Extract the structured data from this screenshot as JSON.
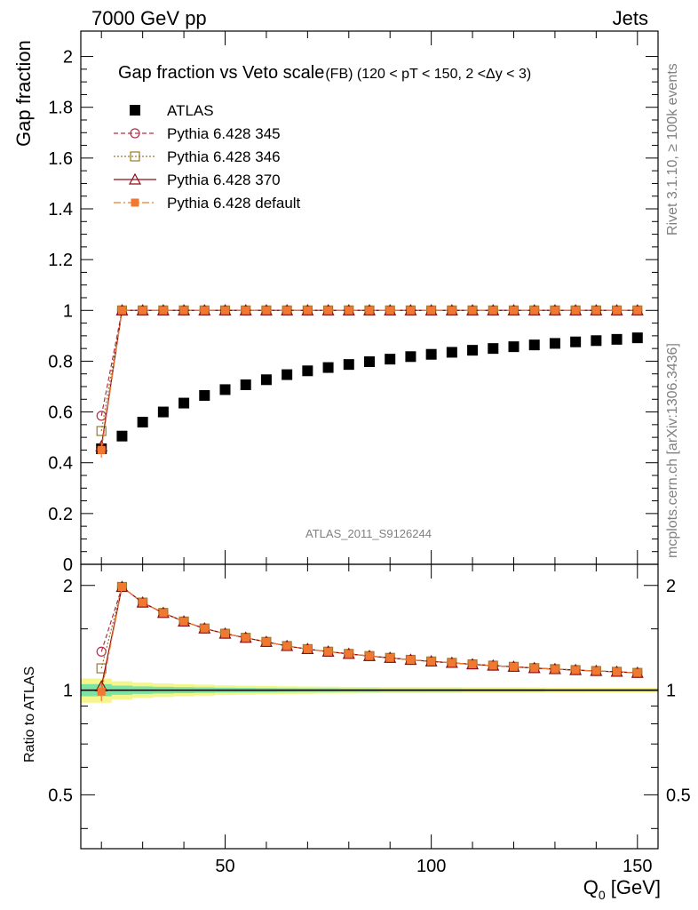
{
  "header": {
    "energy_label": "7000 GeV pp",
    "category_label": "Jets"
  },
  "side_labels": {
    "rivet": "Rivet 3.1.10, ≥ 100k events",
    "mcplots": "mcplots.cern.ch [arXiv:1306.3436]"
  },
  "watermark": "ATLAS_2011_S9126244",
  "colors": {
    "atlas": "#000000",
    "p345": "#b0304a",
    "p346": "#9a7a2a",
    "p370": "#8b0d17",
    "pdefault": "#f07830",
    "band_inner": "#7ee2a0",
    "band_outer": "#f4f58a"
  },
  "chart_data": [
    {
      "type": "scatter",
      "panel": "main",
      "title": "Gap fraction vs Veto scale",
      "subtitle": "(FB) (120 < pT < 150, 2 <Δy < 3)",
      "ylabel": "Gap fraction",
      "xlim": [
        15,
        155
      ],
      "ylim": [
        0,
        2.1
      ],
      "yticks": [
        0,
        0.2,
        0.4,
        0.6,
        0.8,
        1,
        1.2,
        1.4,
        1.6,
        1.8,
        2
      ],
      "ytick_labels": [
        "0",
        "0.2",
        "0.4",
        "0.6",
        "0.8",
        "1",
        "1.2",
        "1.4",
        "1.6",
        "1.8",
        "2"
      ],
      "legend_position": "top-left",
      "series": [
        {
          "name": "ATLAS",
          "key": "atlas",
          "marker": "filled-square",
          "line": "none",
          "x": [
            20,
            25,
            30,
            35,
            40,
            45,
            50,
            55,
            60,
            65,
            70,
            75,
            80,
            85,
            90,
            95,
            100,
            105,
            110,
            115,
            120,
            125,
            130,
            135,
            140,
            145,
            150
          ],
          "y": [
            0.455,
            0.505,
            0.56,
            0.6,
            0.635,
            0.665,
            0.688,
            0.707,
            0.727,
            0.747,
            0.762,
            0.775,
            0.787,
            0.798,
            0.808,
            0.818,
            0.827,
            0.835,
            0.843,
            0.85,
            0.857,
            0.864,
            0.87,
            0.876,
            0.881,
            0.886,
            0.892
          ]
        },
        {
          "name": "Pythia 6.428 345",
          "key": "p345",
          "marker": "open-circle",
          "line": "dashed",
          "x": [
            20,
            25,
            30,
            35,
            40,
            45,
            50,
            55,
            60,
            65,
            70,
            75,
            80,
            85,
            90,
            95,
            100,
            105,
            110,
            115,
            120,
            125,
            130,
            135,
            140,
            145,
            150
          ],
          "y": [
            0.585,
            1,
            1,
            1,
            1,
            1,
            1,
            1,
            1,
            1,
            1,
            1,
            1,
            1,
            1,
            1,
            1,
            1,
            1,
            1,
            1,
            1,
            1,
            1,
            1,
            1,
            1
          ]
        },
        {
          "name": "Pythia 6.428 346",
          "key": "p346",
          "marker": "open-square",
          "line": "dotted",
          "x": [
            20,
            25,
            30,
            35,
            40,
            45,
            50,
            55,
            60,
            65,
            70,
            75,
            80,
            85,
            90,
            95,
            100,
            105,
            110,
            115,
            120,
            125,
            130,
            135,
            140,
            145,
            150
          ],
          "y": [
            0.525,
            1,
            1,
            1,
            1,
            1,
            1,
            1,
            1,
            1,
            1,
            1,
            1,
            1,
            1,
            1,
            1,
            1,
            1,
            1,
            1,
            1,
            1,
            1,
            1,
            1,
            1
          ]
        },
        {
          "name": "Pythia 6.428 370",
          "key": "p370",
          "marker": "open-triangle",
          "line": "solid",
          "x": [
            20,
            25,
            30,
            35,
            40,
            45,
            50,
            55,
            60,
            65,
            70,
            75,
            80,
            85,
            90,
            95,
            100,
            105,
            110,
            115,
            120,
            125,
            130,
            135,
            140,
            145,
            150
          ],
          "y": [
            0.465,
            1,
            1,
            1,
            1,
            1,
            1,
            1,
            1,
            1,
            1,
            1,
            1,
            1,
            1,
            1,
            1,
            1,
            1,
            1,
            1,
            1,
            1,
            1,
            1,
            1,
            1
          ]
        },
        {
          "name": "Pythia 6.428 default",
          "key": "pdefault",
          "marker": "filled-square-small",
          "line": "dashdot",
          "x": [
            20,
            25,
            30,
            35,
            40,
            45,
            50,
            55,
            60,
            65,
            70,
            75,
            80,
            85,
            90,
            95,
            100,
            105,
            110,
            115,
            120,
            125,
            130,
            135,
            140,
            145,
            150
          ],
          "y": [
            0.45,
            1,
            1,
            1,
            1,
            1,
            1,
            1,
            1,
            1,
            1,
            1,
            1,
            1,
            1,
            1,
            1,
            1,
            1,
            1,
            1,
            1,
            1,
            1,
            1,
            1,
            1
          ],
          "yerr_first": 0.03
        }
      ]
    },
    {
      "type": "line",
      "panel": "ratio",
      "ylabel": "Ratio to ATLAS",
      "xlabel": "Q_0 [GeV]",
      "xlabel_main": "Q",
      "xlabel_sub": "0",
      "xlabel_unit": " [GeV]",
      "xlim": [
        15,
        155
      ],
      "ylim": [
        0.35,
        2.3
      ],
      "log_y": true,
      "xticks": [
        50,
        100,
        150
      ],
      "xtick_labels": [
        "50",
        "100",
        "150"
      ],
      "yticks": [
        0.5,
        1,
        2
      ],
      "ytick_labels": [
        "0.5",
        "1",
        "2"
      ],
      "reference_band": {
        "x": [
          15,
          20,
          25,
          30,
          35,
          40,
          45,
          50,
          55,
          60,
          65,
          70,
          75,
          80,
          85,
          90,
          95,
          100,
          105,
          110,
          115,
          120,
          125,
          130,
          135,
          140,
          145,
          150,
          155
        ],
        "inner": [
          0.04,
          0.04,
          0.03,
          0.025,
          0.022,
          0.02,
          0.018,
          0.016,
          0.015,
          0.014,
          0.013,
          0.012,
          0.012,
          0.011,
          0.011,
          0.01,
          0.01,
          0.01,
          0.01,
          0.009,
          0.009,
          0.009,
          0.009,
          0.008,
          0.008,
          0.008,
          0.008,
          0.008,
          0.008
        ],
        "outer": [
          0.08,
          0.08,
          0.06,
          0.05,
          0.045,
          0.04,
          0.036,
          0.032,
          0.03,
          0.028,
          0.026,
          0.024,
          0.023,
          0.022,
          0.021,
          0.02,
          0.02,
          0.019,
          0.019,
          0.018,
          0.018,
          0.018,
          0.017,
          0.017,
          0.017,
          0.016,
          0.016,
          0.016,
          0.016
        ]
      },
      "series": [
        {
          "name": "Pythia 6.428 345",
          "key": "p345",
          "x": [
            20,
            25,
            30,
            35,
            40,
            45,
            50,
            55,
            60,
            65,
            70,
            75,
            80,
            85,
            90,
            95,
            100,
            105,
            110,
            115,
            120,
            125,
            130,
            135,
            140,
            145,
            150
          ],
          "y": [
            1.29,
            1.98,
            1.785,
            1.667,
            1.575,
            1.504,
            1.453,
            1.414,
            1.376,
            1.339,
            1.312,
            1.29,
            1.271,
            1.253,
            1.238,
            1.222,
            1.209,
            1.198,
            1.186,
            1.176,
            1.167,
            1.157,
            1.149,
            1.142,
            1.135,
            1.129,
            1.121
          ]
        },
        {
          "name": "Pythia 6.428 346",
          "key": "p346",
          "x": [
            20,
            25,
            30,
            35,
            40,
            45,
            50,
            55,
            60,
            65,
            70,
            75,
            80,
            85,
            90,
            95,
            100,
            105,
            110,
            115,
            120,
            125,
            130,
            135,
            140,
            145,
            150
          ],
          "y": [
            1.155,
            1.98,
            1.785,
            1.667,
            1.575,
            1.504,
            1.453,
            1.414,
            1.376,
            1.339,
            1.312,
            1.29,
            1.271,
            1.253,
            1.238,
            1.222,
            1.209,
            1.198,
            1.186,
            1.176,
            1.167,
            1.157,
            1.149,
            1.142,
            1.135,
            1.129,
            1.121
          ]
        },
        {
          "name": "Pythia 6.428 370",
          "key": "p370",
          "x": [
            20,
            25,
            30,
            35,
            40,
            45,
            50,
            55,
            60,
            65,
            70,
            75,
            80,
            85,
            90,
            95,
            100,
            105,
            110,
            115,
            120,
            125,
            130,
            135,
            140,
            145,
            150
          ],
          "y": [
            1.025,
            1.98,
            1.785,
            1.667,
            1.575,
            1.504,
            1.453,
            1.414,
            1.376,
            1.339,
            1.312,
            1.29,
            1.271,
            1.253,
            1.238,
            1.222,
            1.209,
            1.198,
            1.186,
            1.176,
            1.167,
            1.157,
            1.149,
            1.142,
            1.135,
            1.129,
            1.121
          ]
        },
        {
          "name": "Pythia 6.428 default",
          "key": "pdefault",
          "x": [
            20,
            25,
            30,
            35,
            40,
            45,
            50,
            55,
            60,
            65,
            70,
            75,
            80,
            85,
            90,
            95,
            100,
            105,
            110,
            115,
            120,
            125,
            130,
            135,
            140,
            145,
            150
          ],
          "y": [
            0.99,
            1.98,
            1.785,
            1.667,
            1.575,
            1.504,
            1.453,
            1.414,
            1.376,
            1.339,
            1.312,
            1.29,
            1.271,
            1.253,
            1.238,
            1.222,
            1.209,
            1.198,
            1.186,
            1.176,
            1.167,
            1.157,
            1.149,
            1.142,
            1.135,
            1.129,
            1.121
          ],
          "yerr_first": 0.06
        }
      ]
    }
  ]
}
